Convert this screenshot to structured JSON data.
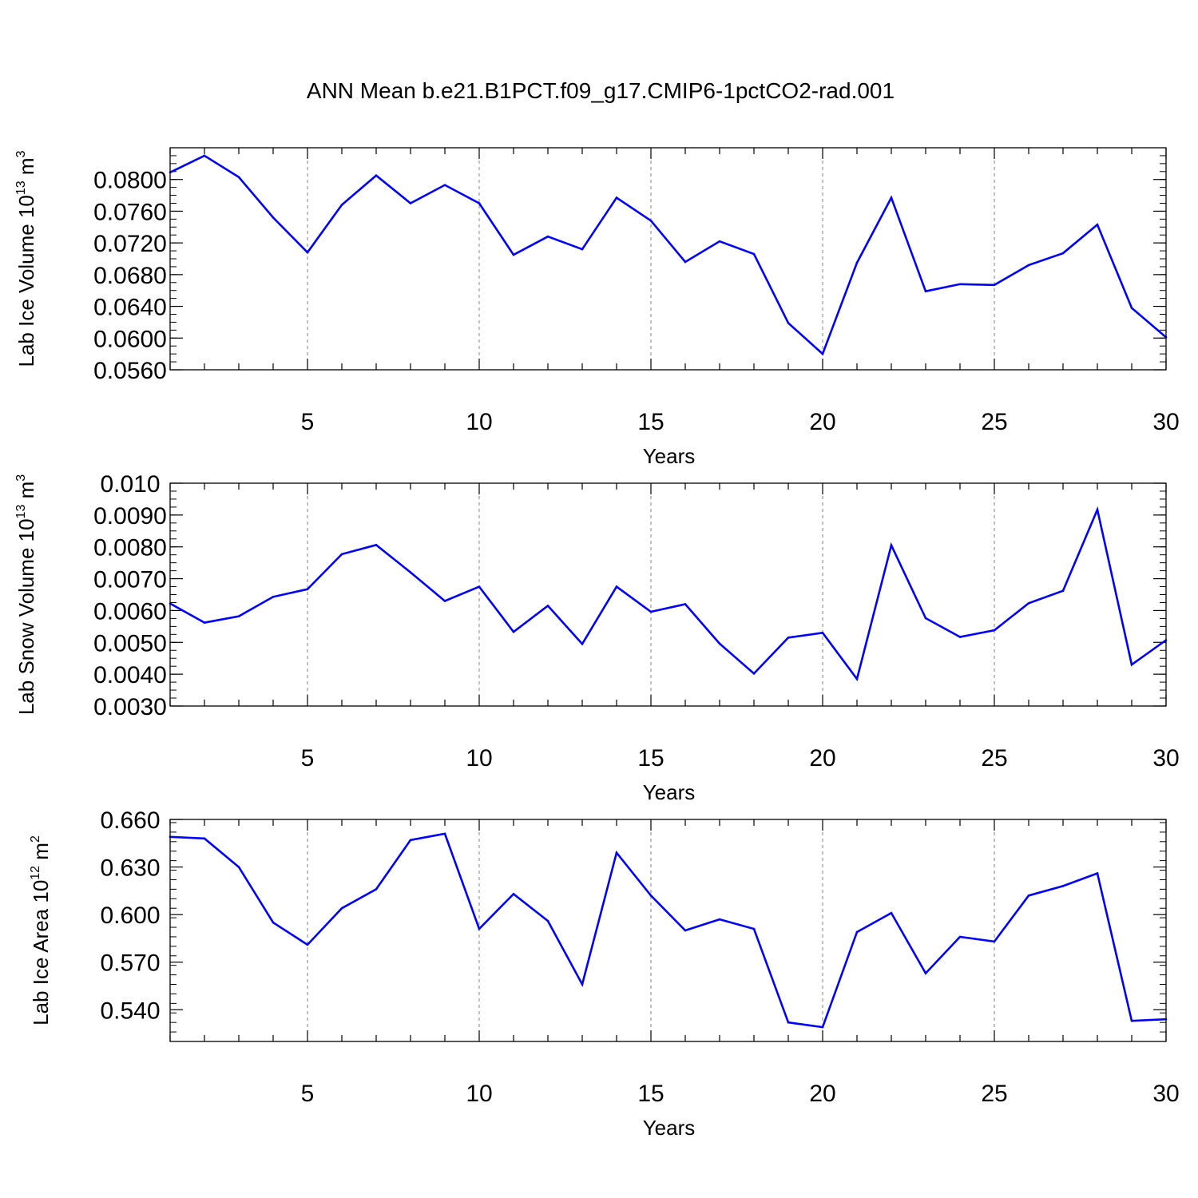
{
  "title": "ANN Mean b.e21.B1PCT.f09_g17.CMIP6-1pctCO2-rad.001",
  "colors": {
    "series": "#0000ff",
    "axis": "#000000",
    "grid": "#808080"
  },
  "chart_data": [
    {
      "type": "line",
      "ylabel": {
        "text": "Lab Ice Volume 10",
        "exponent": "13",
        "unit": " m",
        "unit_exponent": "3"
      },
      "xlabel": "Years",
      "xlim": [
        1,
        30
      ],
      "ylim": [
        0.056,
        0.084
      ],
      "y_ticks": [
        "0.0560",
        "0.0600",
        "0.0640",
        "0.0680",
        "0.0720",
        "0.0760",
        "0.0800"
      ],
      "y_minor_step": 0.001,
      "x_ticks": [
        "5",
        "10",
        "15",
        "20",
        "25",
        "30"
      ],
      "x_grid": [
        5,
        10,
        15,
        20,
        25
      ],
      "x": [
        1,
        2,
        3,
        4,
        5,
        6,
        7,
        8,
        9,
        10,
        11,
        12,
        13,
        14,
        15,
        16,
        17,
        18,
        19,
        20,
        21,
        22,
        23,
        24,
        25,
        26,
        27,
        28,
        29,
        30
      ],
      "series": [
        {
          "values": [
            0.0809,
            0.083,
            0.0803,
            0.0752,
            0.0708,
            0.0768,
            0.0805,
            0.077,
            0.0793,
            0.077,
            0.0705,
            0.0728,
            0.0712,
            0.0777,
            0.0748,
            0.0696,
            0.0722,
            0.0706,
            0.0619,
            0.058,
            0.0695,
            0.0777,
            0.0659,
            0.0668,
            0.0667,
            0.0692,
            0.0707,
            0.0743,
            0.0638,
            0.0601
          ]
        }
      ]
    },
    {
      "type": "line",
      "ylabel": {
        "text": "Lab Snow Volume 10",
        "exponent": "13",
        "unit": " m",
        "unit_exponent": "3"
      },
      "xlabel": "Years",
      "xlim": [
        1,
        30
      ],
      "ylim": [
        0.003,
        0.01
      ],
      "y_ticks": [
        "0.0030",
        "0.0040",
        "0.0050",
        "0.0060",
        "0.0070",
        "0.0080",
        "0.0090",
        "0.010"
      ],
      "y_minor_step": 0.00025,
      "x_ticks": [
        "5",
        "10",
        "15",
        "20",
        "25",
        "30"
      ],
      "x_grid": [
        5,
        10,
        15,
        20,
        25
      ],
      "x": [
        1,
        2,
        3,
        4,
        5,
        6,
        7,
        8,
        9,
        10,
        11,
        12,
        13,
        14,
        15,
        16,
        17,
        18,
        19,
        20,
        21,
        22,
        23,
        24,
        25,
        26,
        27,
        28,
        29,
        30
      ],
      "series": [
        {
          "values": [
            0.00622,
            0.00562,
            0.00582,
            0.00643,
            0.00667,
            0.00777,
            0.00806,
            0.0072,
            0.0063,
            0.00675,
            0.00533,
            0.00615,
            0.00495,
            0.00675,
            0.00596,
            0.0062,
            0.00496,
            0.00402,
            0.00515,
            0.0053,
            0.00385,
            0.00805,
            0.00576,
            0.00517,
            0.00538,
            0.00623,
            0.00662,
            0.00917,
            0.0043,
            0.00507
          ]
        }
      ]
    },
    {
      "type": "line",
      "ylabel": {
        "text": "Lab Ice Area 10",
        "exponent": "12",
        "unit": " m",
        "unit_exponent": "2"
      },
      "xlabel": "Years",
      "xlim": [
        1,
        30
      ],
      "ylim": [
        0.52,
        0.66
      ],
      "y_ticks": [
        "0.540",
        "0.570",
        "0.600",
        "0.630",
        "0.660"
      ],
      "y_minor_step": 0.006,
      "x_ticks": [
        "5",
        "10",
        "15",
        "20",
        "25",
        "30"
      ],
      "x_grid": [
        5,
        10,
        15,
        20,
        25
      ],
      "x": [
        1,
        2,
        3,
        4,
        5,
        6,
        7,
        8,
        9,
        10,
        11,
        12,
        13,
        14,
        15,
        16,
        17,
        18,
        19,
        20,
        21,
        22,
        23,
        24,
        25,
        26,
        27,
        28,
        29,
        30
      ],
      "series": [
        {
          "values": [
            0.649,
            0.648,
            0.63,
            0.595,
            0.581,
            0.604,
            0.616,
            0.647,
            0.651,
            0.591,
            0.613,
            0.596,
            0.556,
            0.639,
            0.612,
            0.59,
            0.597,
            0.591,
            0.532,
            0.529,
            0.589,
            0.601,
            0.563,
            0.586,
            0.583,
            0.612,
            0.618,
            0.626,
            0.533,
            0.534
          ]
        }
      ]
    }
  ]
}
